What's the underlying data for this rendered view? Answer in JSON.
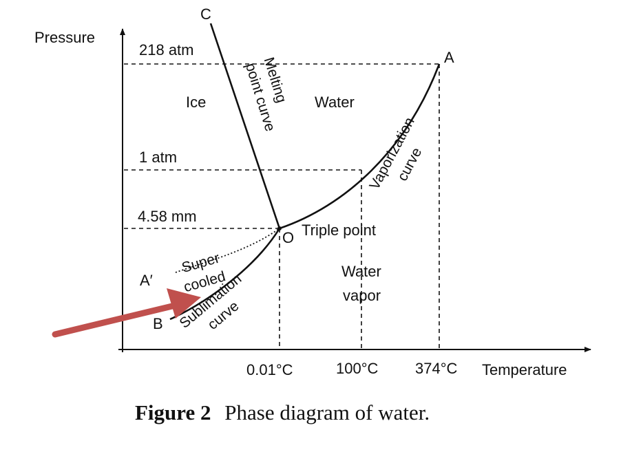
{
  "diagram": {
    "axes": {
      "y_label": "Pressure",
      "x_label": "Temperature"
    },
    "pressure_labels": {
      "p_218atm": "218 atm",
      "p_1atm": "1 atm",
      "p_458mm": "4.58 mm"
    },
    "temperature_labels": {
      "t_001": "0.01°C",
      "t_100": "100°C",
      "t_374": "374°C"
    },
    "points": {
      "A": "A",
      "A_prime": "A′",
      "B": "B",
      "C": "C",
      "O": "O"
    },
    "regions": {
      "ice": "Ice",
      "water": "Water",
      "water_vapor": [
        "Water",
        "vapor"
      ]
    },
    "curves": {
      "melting": [
        "Melting",
        "point curve"
      ],
      "vaporization": [
        "Vaporization",
        "curve"
      ],
      "sublimation": [
        "Sublimation",
        "curve"
      ],
      "supercooled": [
        "Super",
        "cooled"
      ],
      "triple_point": "Triple point"
    },
    "caption": {
      "bold": "Figure 2",
      "text": "Phase diagram of water."
    },
    "colors": {
      "ink": "#111111",
      "arrow": "#c0504d"
    }
  }
}
